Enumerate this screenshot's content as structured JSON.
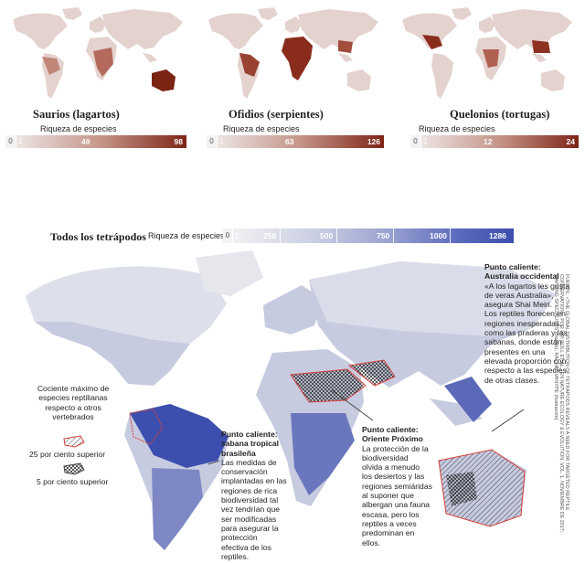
{
  "small_maps": [
    {
      "title": "Saurios (lagartos)",
      "scale_label": "Riqueza de especies",
      "zero": "0",
      "one": "1",
      "mid": "49",
      "max": "98",
      "color": "#8a2a1e"
    },
    {
      "title": "Ofidios (serpientes)",
      "scale_label": "Riqueza de especies",
      "zero": "0",
      "one": "1",
      "mid": "63",
      "max": "126",
      "color": "#8a2a1e"
    },
    {
      "title": "Quelonios (tortugas)",
      "scale_label": "Riqueza de especies",
      "zero": "0",
      "one": "1",
      "mid": "12",
      "max": "24",
      "color": "#8a2a1e"
    }
  ],
  "main_map": {
    "title": "Todos los tetrápodos",
    "scale_label": "Riqueza de especies",
    "zero": "0",
    "one": "1",
    "ticks": [
      "250",
      "500",
      "750",
      "1000",
      "1286"
    ],
    "color_max": "#3d4fae"
  },
  "legend": {
    "title": "Cociente máximo de especies reptilianas respecto a otros vertebrados",
    "hatch_top": "25 por ciento superior",
    "hatch_cross": "5 por ciento superior",
    "outline_color": "#d6403a"
  },
  "annotations": {
    "australia": {
      "heading1": "Punto caliente:",
      "heading2": "Australia occidental",
      "lines": [
        "«A los lagartos les gusta",
        "de veras Australia»,",
        "asegura Shai Meiri.",
        "Los reptiles florecen en",
        "regiones inesperadas,",
        "como las praderas y las",
        "sabanas, donde están",
        "presentes en una",
        "elevada proporción con",
        "respecto a las especies",
        "de otras clases."
      ]
    },
    "brasil": {
      "heading1": "Punto caliente:",
      "heading2": "sabana tropical",
      "heading3": "brasileña",
      "lines": [
        "Las medidas de",
        "conservación",
        "implantadas en las",
        "regiones de rica",
        "biodiversidad tal",
        "vez tendrían que",
        "ser modificadas",
        "para asegurar la",
        "protección",
        "efectiva de los",
        "reptiles."
      ]
    },
    "oriente": {
      "heading1": "Punto caliente:",
      "heading2": "Oriente Próximo",
      "lines": [
        "La protección de la",
        "biodiversidad",
        "olvida a menudo",
        "los desiertos y las",
        "regiones semiáridas",
        "al suponer que",
        "albergan una fauna",
        "escasa, pero los",
        "reptiles a veces",
        "predominan en",
        "ellos."
      ]
    }
  },
  "source": "FUENTE: «THE GLOBAL DISTRIBUTION OF TETRAPODS REVEALS A NEED FOR TARGETED REPTILE CONSERVATION», POR URI ROLL ET AL., EN NATURE ECOLOGY & EVOLUTION, VOL. 1, NOVIEMBRE DE 2017; MAPPING SPECIALISTS (mapas); RACHEL VANYPE (ilustración)"
}
